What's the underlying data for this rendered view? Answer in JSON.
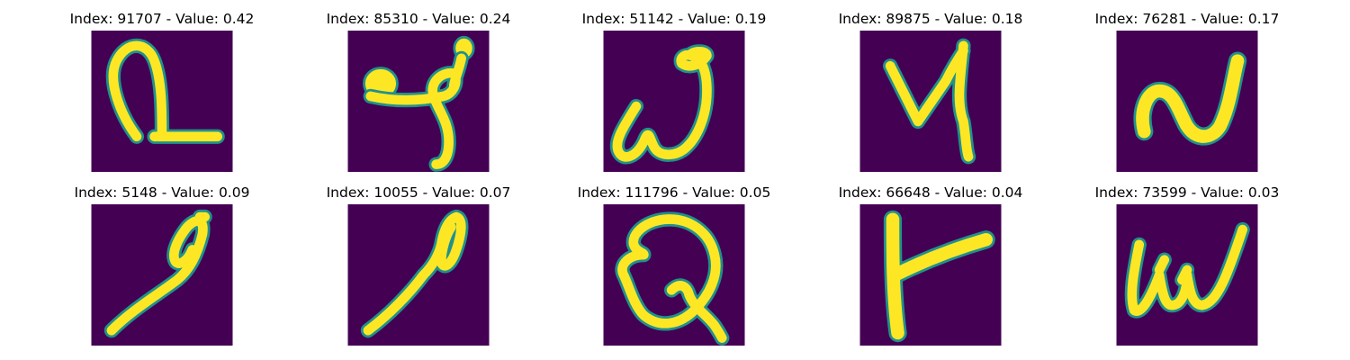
{
  "figure": {
    "background_color": "#440154",
    "stroke_color": "#fde725",
    "edge_color": "#21918c",
    "panels": [
      {
        "title": "Index: 91707 - Value: 0.42",
        "index": 91707,
        "value": 0.42,
        "glyph": "loop-underline-glyph"
      },
      {
        "title": "Index: 85310 - Value: 0.24",
        "index": 85310,
        "value": 0.24,
        "glyph": "blob-hook-glyph"
      },
      {
        "title": "Index: 51142 - Value: 0.19",
        "index": 51142,
        "value": 0.19,
        "glyph": "omega-curl-glyph"
      },
      {
        "title": "Index: 89875 - Value: 0.18",
        "index": 89875,
        "value": 0.18,
        "glyph": "y-zigzag-glyph"
      },
      {
        "title": "Index: 76281 - Value: 0.17",
        "index": 76281,
        "value": 0.17,
        "glyph": "wave-n-glyph"
      },
      {
        "title": "Index: 5148 - Value: 0.09",
        "index": 5148,
        "value": 0.09,
        "glyph": "loop-diagonal-glyph"
      },
      {
        "title": "Index: 10055 - Value: 0.07",
        "index": 10055,
        "value": 0.07,
        "glyph": "loop-diagonal-thin-glyph"
      },
      {
        "title": "Index: 111796 - Value: 0.05",
        "index": 111796,
        "value": 0.05,
        "glyph": "q-loop-glyph"
      },
      {
        "title": "Index: 66648 - Value: 0.04",
        "index": 66648,
        "value": 0.04,
        "glyph": "k-stroke-glyph"
      },
      {
        "title": "Index: 73599 - Value: 0.03",
        "index": 73599,
        "value": 0.03,
        "glyph": "w-script-glyph"
      }
    ]
  }
}
